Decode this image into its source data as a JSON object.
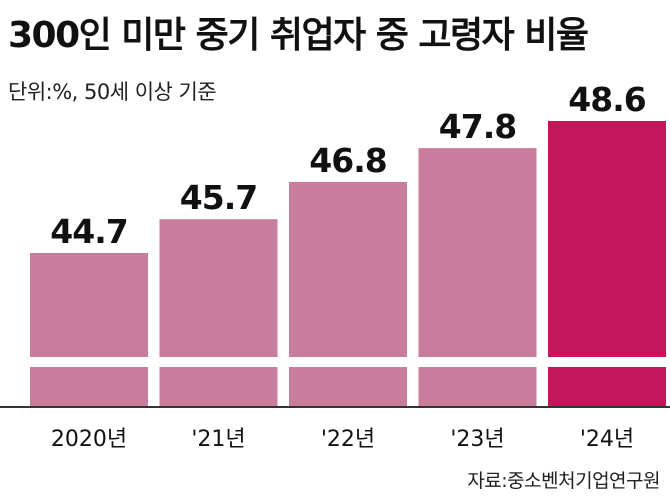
{
  "header": {
    "title": "300인 미만 중기 취업자 중 고령자 비율",
    "unit_note": "단위:%, 50세 이상 기준"
  },
  "footer": {
    "source": "자료:중소벤처기업연구원"
  },
  "colors": {
    "bar": "#c97d9c",
    "highlight_bar": "#c2185b",
    "axis": "#333333"
  },
  "chart_data": {
    "type": "bar",
    "title": "300인 미만 중기 취업자 중 고령자 비율",
    "subtitle": "단위:%, 50세 이상 기준",
    "categories": [
      "2020년",
      "'21년",
      "'22년",
      "'23년",
      "'24년"
    ],
    "values": [
      44.7,
      45.7,
      46.8,
      47.8,
      48.6
    ],
    "value_labels": [
      "44.7",
      "45.7",
      "46.8",
      "47.8",
      "48.6"
    ],
    "highlight_index": 4,
    "axis_break": true,
    "grid": false,
    "legend": "none",
    "xlabel": "",
    "ylabel": ""
  }
}
